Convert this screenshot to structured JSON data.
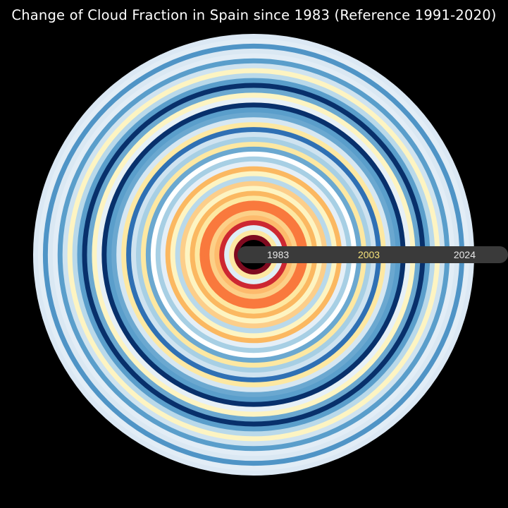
{
  "chart_data": {
    "type": "radial-stripes",
    "title": "Change of Cloud Fraction in Spain since 1983 (Reference 1991-2020)",
    "start_year": 1983,
    "end_year": 2024,
    "axis_labels": [
      {
        "year": 1983,
        "text": "1983",
        "color": "#e8e8e8"
      },
      {
        "year": 2003,
        "text": "2003",
        "color": "#f5e27a"
      },
      {
        "year": 2024,
        "text": "2024",
        "color": "#e8e8e8"
      }
    ],
    "stripe_colors": [
      "#7f0a1f",
      "#fde8a2",
      "#dfeef6",
      "#cd2731",
      "#fdba6c",
      "#fcd088",
      "#f9793d",
      "#f9793d",
      "#fde8a2",
      "#fbb861",
      "#fdf4c2",
      "#fcce8a",
      "#b9d9ea",
      "#fdf4c2",
      "#fbb861",
      "#e5eff7",
      "#a7cfe4",
      "#ffffff",
      "#6ba8d0",
      "#fde8a2",
      "#a7cfe4",
      "#cfe3f0",
      "#2f70b4",
      "#fde8a2",
      "#d6e7f2",
      "#6ba8d0",
      "#5a9ecb",
      "#08306b",
      "#e6f0f7",
      "#fdf4c2",
      "#6ba8d0",
      "#08306b",
      "#5a9ecb",
      "#b9d9ea",
      "#fdf4c2",
      "#cfe3f0",
      "#5a9ecb",
      "#e2edf6",
      "#dae8f3",
      "#4f94c6",
      "#e2edf6",
      "#dbe8f4"
    ]
  },
  "colors": {
    "background": "#000000",
    "title": "#ffffff",
    "label_bar": "#3a3a3a"
  }
}
